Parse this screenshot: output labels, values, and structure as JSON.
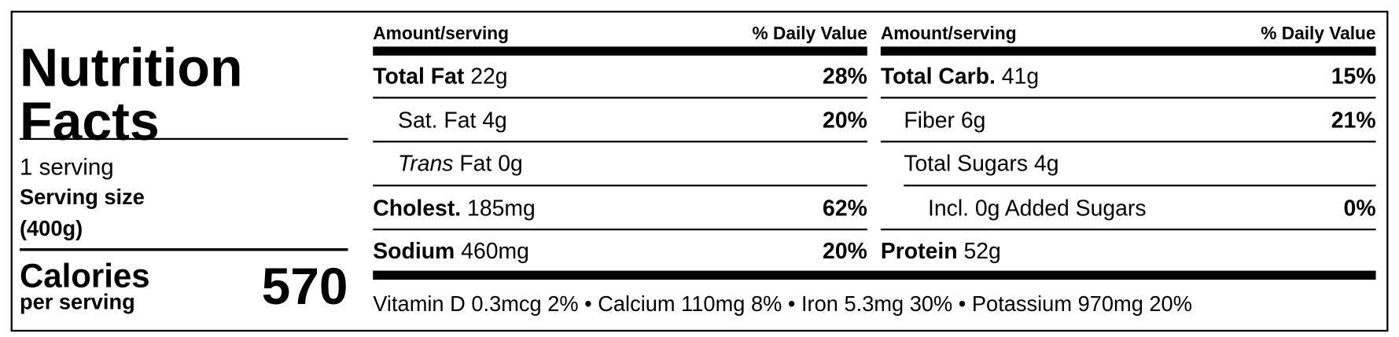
{
  "left": {
    "title": "Nutrition Facts",
    "servings": "1 serving",
    "serving_size_label": "Serving size",
    "serving_size": "(400g)",
    "calories_label": "Calories",
    "calories_per": "per serving",
    "calories": 570
  },
  "columns": [
    {
      "amount_header": "Amount/serving",
      "dv_header": "% Daily Value",
      "rows": [
        {
          "name": "Total Fat",
          "amount": "22g",
          "dv": "28%"
        },
        {
          "name": "Sat. Fat",
          "amount": "4g",
          "dv": "20%"
        },
        {
          "name": [
            "Trans",
            "Fat"
          ],
          "amount": "0g"
        },
        {
          "name": "Cholest.",
          "amount": "185mg",
          "dv": "62%"
        },
        {
          "name": "Sodium",
          "amount": "460mg",
          "dv": "20%"
        }
      ]
    },
    {
      "amount_header": "Amount/serving",
      "dv_header": "% Daily Value",
      "rows": [
        {
          "name": "Total Carb.",
          "amount": "41g",
          "dv": "15%"
        },
        {
          "name": "Fiber",
          "amount": "6g",
          "dv": "21%"
        },
        {
          "name": "Total Sugars",
          "amount": "4g"
        },
        {
          "name": "Incl. 0g Added Sugars",
          "dv": "0%"
        },
        {
          "name": "Protein",
          "amount": "52g"
        }
      ]
    }
  ],
  "footer": "Vitamin D 0.3mcg 2% • Calcium 110mg 8% • Iron 5.3mg 30% • Potassium 970mg 20%"
}
